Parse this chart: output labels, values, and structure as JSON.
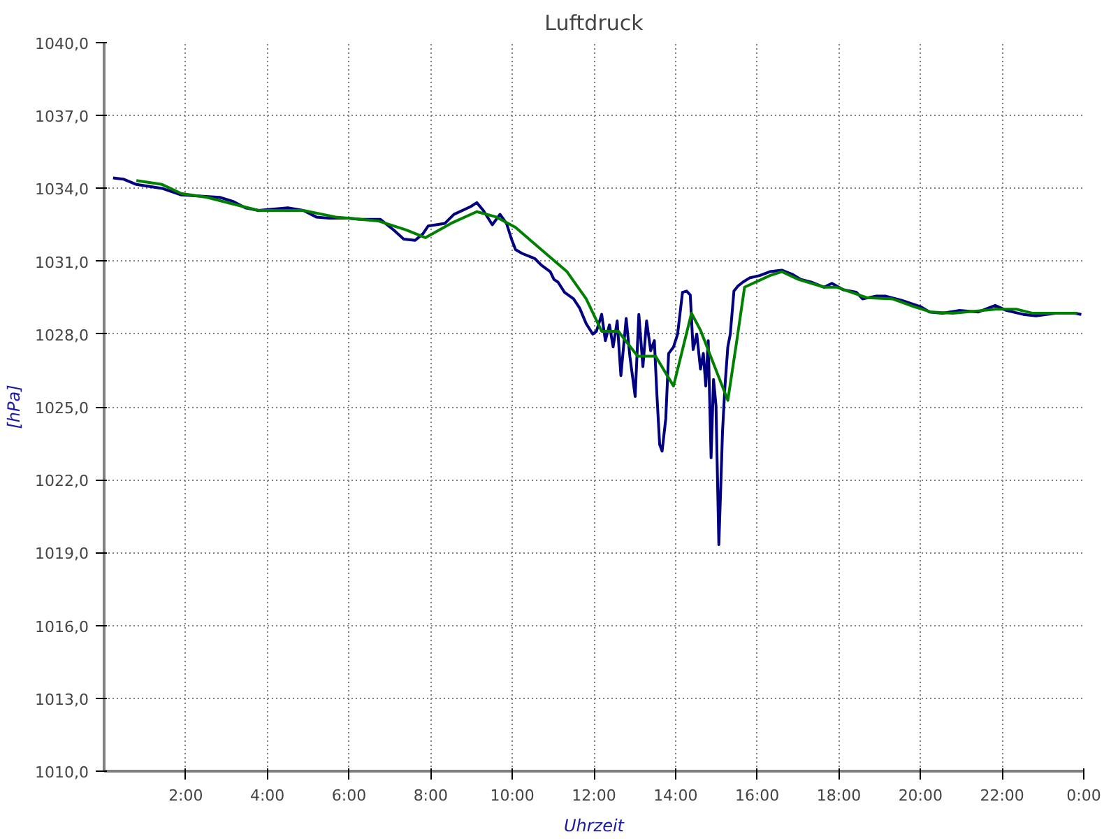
{
  "chart_data": {
    "type": "line",
    "title": "Luftdruck",
    "xlabel": "Uhrzeit",
    "ylabel": "[hPa]",
    "xlim": [
      0,
      24
    ],
    "ylim": [
      1010,
      1040
    ],
    "xticks": [
      {
        "value": 2,
        "label": "2:00"
      },
      {
        "value": 4,
        "label": "4:00"
      },
      {
        "value": 6,
        "label": "6:00"
      },
      {
        "value": 8,
        "label": "8:00"
      },
      {
        "value": 10,
        "label": "10:00"
      },
      {
        "value": 12,
        "label": "12:00"
      },
      {
        "value": 14,
        "label": "14:00"
      },
      {
        "value": 16,
        "label": "16:00"
      },
      {
        "value": 18,
        "label": "18:00"
      },
      {
        "value": 20,
        "label": "20:00"
      },
      {
        "value": 22,
        "label": "22:00"
      },
      {
        "value": 24,
        "label": "0:00"
      }
    ],
    "yticks": [
      {
        "value": 1010,
        "label": "1010,0"
      },
      {
        "value": 1013,
        "label": "1013,0"
      },
      {
        "value": 1016,
        "label": "1016,0"
      },
      {
        "value": 1019,
        "label": "1019,0"
      },
      {
        "value": 1022,
        "label": "1022,0"
      },
      {
        "value": 1025,
        "label": "1025,0"
      },
      {
        "value": 1028,
        "label": "1028,0"
      },
      {
        "value": 1031,
        "label": "1031,0"
      },
      {
        "value": 1034,
        "label": "1034,0"
      },
      {
        "value": 1037,
        "label": "1037,0"
      },
      {
        "value": 1040,
        "label": "1040,0"
      }
    ],
    "grid": true,
    "series": [
      {
        "color": "#000080",
        "x": [
          0.22,
          0.47,
          0.79,
          1.42,
          1.89,
          2.83,
          3.15,
          3.46,
          3.78,
          4.5,
          4.88,
          5.2,
          5.51,
          5.98,
          6.3,
          6.77,
          7.09,
          7.34,
          7.62,
          7.81,
          7.94,
          8.35,
          8.57,
          8.98,
          9.13,
          9.29,
          9.51,
          9.7,
          9.86,
          9.98,
          10.08,
          10.24,
          10.55,
          10.71,
          10.93,
          11.02,
          11.12,
          11.28,
          11.5,
          11.65,
          11.81,
          11.97,
          12.06,
          12.19,
          12.28,
          12.38,
          12.47,
          12.57,
          12.66,
          12.79,
          12.88,
          13.01,
          13.1,
          13.2,
          13.29,
          13.39,
          13.48,
          13.54,
          13.61,
          13.67,
          13.76,
          13.83,
          13.95,
          14.05,
          14.17,
          14.27,
          14.36,
          14.43,
          14.52,
          14.61,
          14.68,
          14.74,
          14.8,
          14.87,
          14.93,
          14.99,
          15.06,
          15.12,
          15.15,
          15.21,
          15.28,
          15.34,
          15.43,
          15.53,
          15.65,
          15.81,
          16.06,
          16.31,
          16.6,
          16.85,
          17.07,
          17.32,
          17.64,
          17.83,
          18.11,
          18.43,
          18.58,
          18.9,
          19.15,
          19.53,
          20.0,
          20.22,
          20.54,
          20.94,
          21.42,
          21.83,
          22.11,
          22.52,
          22.83,
          23.31,
          23.78,
          23.94
        ],
        "values": [
          1034.43,
          1034.38,
          1034.16,
          1034.0,
          1033.73,
          1033.63,
          1033.47,
          1033.2,
          1033.09,
          1033.2,
          1033.09,
          1032.82,
          1032.77,
          1032.77,
          1032.72,
          1032.72,
          1032.29,
          1031.91,
          1031.86,
          1032.13,
          1032.45,
          1032.56,
          1032.93,
          1033.25,
          1033.41,
          1033.09,
          1032.5,
          1032.93,
          1032.55,
          1031.91,
          1031.48,
          1031.32,
          1031.11,
          1030.84,
          1030.57,
          1030.25,
          1030.14,
          1029.72,
          1029.45,
          1029.07,
          1028.43,
          1028.0,
          1028.11,
          1028.81,
          1027.73,
          1028.38,
          1027.47,
          1028.54,
          1026.29,
          1028.64,
          1027.09,
          1025.43,
          1028.81,
          1026.66,
          1028.54,
          1027.31,
          1027.73,
          1025.59,
          1023.45,
          1023.18,
          1024.52,
          1027.2,
          1027.47,
          1028.0,
          1029.72,
          1029.77,
          1029.61,
          1027.36,
          1028.0,
          1026.56,
          1027.2,
          1025.86,
          1027.73,
          1022.91,
          1026.13,
          1025.06,
          1019.33,
          1022.38,
          1023.98,
          1025.86,
          1027.47,
          1028.0,
          1029.77,
          1029.98,
          1030.14,
          1030.31,
          1030.41,
          1030.57,
          1030.63,
          1030.47,
          1030.25,
          1030.14,
          1029.93,
          1030.09,
          1029.82,
          1029.72,
          1029.45,
          1029.56,
          1029.56,
          1029.39,
          1029.13,
          1028.91,
          1028.86,
          1028.97,
          1028.91,
          1029.18,
          1028.97,
          1028.81,
          1028.75,
          1028.86,
          1028.86,
          1028.81
        ]
      },
      {
        "color": "#008000",
        "x": [
          0.79,
          1.42,
          1.89,
          2.52,
          3.78,
          4.88,
          5.67,
          6.71,
          7.4,
          7.87,
          8.5,
          9.13,
          9.61,
          10.08,
          10.71,
          11.34,
          11.81,
          12.19,
          12.6,
          13.07,
          13.51,
          13.95,
          14.39,
          14.61,
          15.28,
          15.5,
          15.69,
          16.31,
          16.6,
          17.01,
          17.64,
          17.95,
          18.68,
          19.31,
          19.84,
          20.25,
          20.79,
          21.83,
          22.36,
          22.74,
          23.84
        ],
        "values": [
          1034.32,
          1034.16,
          1033.79,
          1033.63,
          1033.09,
          1033.09,
          1032.82,
          1032.66,
          1032.29,
          1031.97,
          1032.56,
          1033.04,
          1032.82,
          1032.39,
          1031.48,
          1030.57,
          1029.45,
          1028.11,
          1028.11,
          1027.09,
          1027.09,
          1025.86,
          1028.86,
          1028.16,
          1025.27,
          1027.73,
          1029.93,
          1030.41,
          1030.57,
          1030.25,
          1029.93,
          1029.93,
          1029.5,
          1029.45,
          1029.13,
          1028.91,
          1028.86,
          1029.02,
          1029.02,
          1028.86,
          1028.86
        ]
      }
    ]
  }
}
